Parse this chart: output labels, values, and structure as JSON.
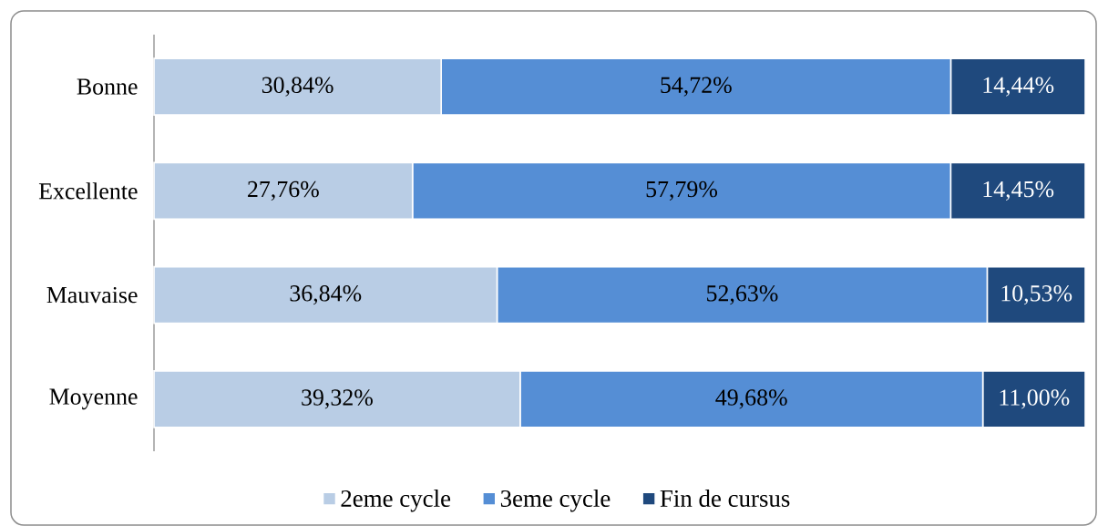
{
  "chart_data": {
    "type": "bar",
    "orientation": "horizontal",
    "stacked": true,
    "categories": [
      "Bonne",
      "Excellente",
      "Mauvaise",
      "Moyenne"
    ],
    "series": [
      {
        "name": "2eme cycle",
        "color": "#b9cde5",
        "values": [
          30.84,
          27.76,
          36.84,
          39.32
        ],
        "value_labels": [
          "30,84%",
          "27,76%",
          "36,84%",
          "39,32%"
        ]
      },
      {
        "name": "3eme cycle",
        "color": "#558ed5",
        "values": [
          54.72,
          57.79,
          52.63,
          49.68
        ],
        "value_labels": [
          "54,72%",
          "57,79%",
          "52,63%",
          "49,68%"
        ]
      },
      {
        "name": "Fin de cursus",
        "color": "#1f497d",
        "values": [
          14.44,
          14.45,
          10.53,
          11.0
        ],
        "value_labels": [
          "14,44%",
          "14,45%",
          "10,53%",
          "11,00%"
        ]
      }
    ],
    "xlim": [
      0,
      100
    ],
    "tick_labels": "y",
    "legend": "bottom"
  }
}
